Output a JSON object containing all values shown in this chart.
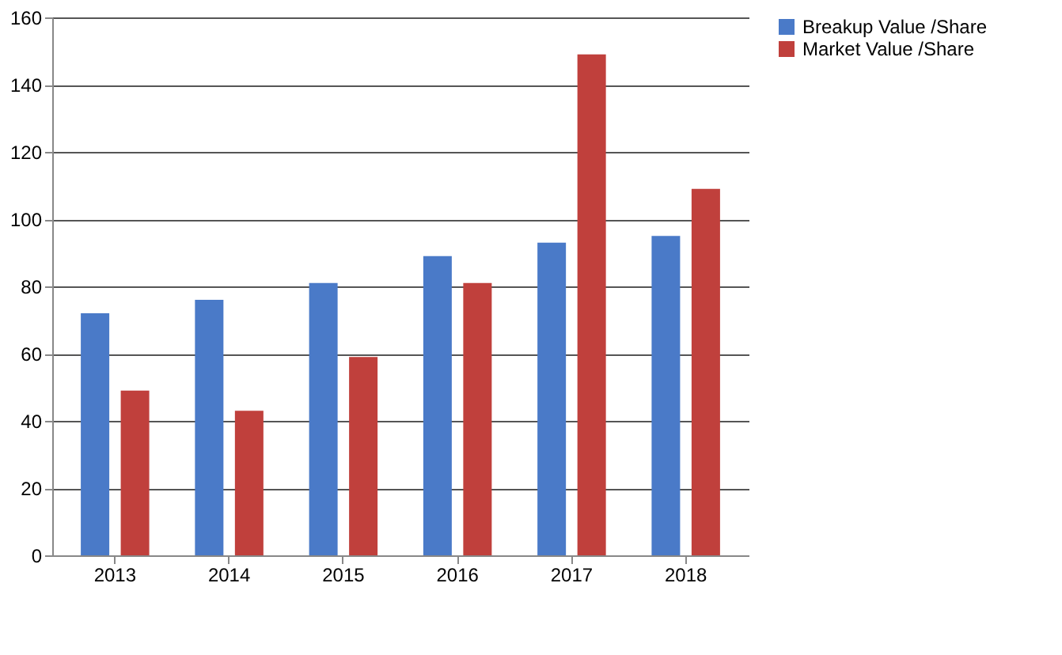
{
  "chart_data": {
    "type": "bar",
    "categories": [
      "2013",
      "2014",
      "2015",
      "2016",
      "2017",
      "2018"
    ],
    "series": [
      {
        "name": "Breakup Value /Share",
        "color": "#4a7ac8",
        "values": [
          72,
          76,
          81,
          89,
          93,
          95
        ]
      },
      {
        "name": "Market Value /Share",
        "color": "#c0403c",
        "values": [
          49,
          43,
          59,
          81,
          149,
          109
        ]
      }
    ],
    "ylim": [
      0,
      160
    ],
    "yticks": [
      0,
      20,
      40,
      60,
      80,
      100,
      120,
      140,
      160
    ],
    "grid": "y",
    "legend": "right"
  }
}
